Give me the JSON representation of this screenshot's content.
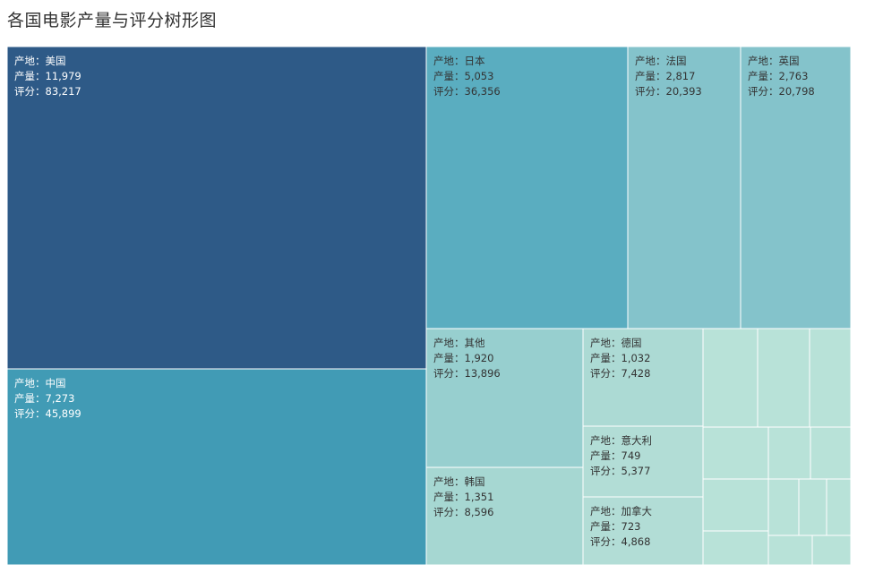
{
  "chart_data": {
    "type": "treemap",
    "title": "各国电影产量与评分树形图",
    "label_prefixes": {
      "region": "产地：",
      "count": "产量：",
      "score": "评分："
    },
    "items": [
      {
        "region": "美国",
        "count": "11,979",
        "score": "83,217",
        "color": "#2e5a87"
      },
      {
        "region": "中国",
        "count": "7,273",
        "score": "45,899",
        "color": "#419bb5"
      },
      {
        "region": "日本",
        "count": "5,053",
        "score": "36,356",
        "color": "#5aadc0"
      },
      {
        "region": "法国",
        "count": "2,817",
        "score": "20,393",
        "color": "#84c3cb"
      },
      {
        "region": "英国",
        "count": "2,763",
        "score": "20,798",
        "color": "#84c3cb"
      },
      {
        "region": "其他",
        "count": "1,920",
        "score": "13,896",
        "color": "#97cfcf"
      },
      {
        "region": "韩国",
        "count": "1,351",
        "score": "8,596",
        "color": "#a6d7d2"
      },
      {
        "region": "德国",
        "count": "1,032",
        "score": "7,428",
        "color": "#acdad4"
      },
      {
        "region": "意大利",
        "count": "749",
        "score": "5,377",
        "color": "#b2ddd6"
      },
      {
        "region": "加拿大",
        "count": "723",
        "score": "4,868",
        "color": "#b2ddd6"
      }
    ],
    "unlabeled_color": "#b8e2d8"
  }
}
